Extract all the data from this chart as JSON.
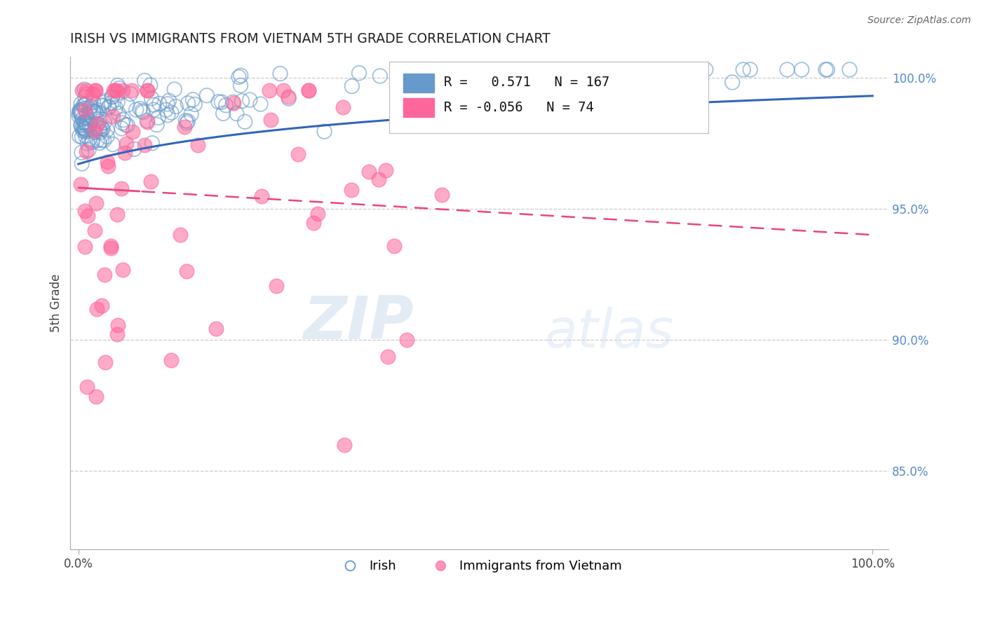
{
  "title": "IRISH VS IMMIGRANTS FROM VIETNAM 5TH GRADE CORRELATION CHART",
  "source": "Source: ZipAtlas.com",
  "ylabel": "5th Grade",
  "ytick_values": [
    0.85,
    0.9,
    0.95,
    1.0
  ],
  "irish_color": "#6699CC",
  "vietnam_color": "#FF6699",
  "irish_R": 0.571,
  "irish_N": 167,
  "vietnam_R": -0.056,
  "vietnam_N": 74,
  "legend_irish": "Irish",
  "legend_vietnam": "Immigrants from Vietnam",
  "watermark_zip": "ZIP",
  "watermark_atlas": "atlas",
  "background_color": "#ffffff",
  "grid_color": "#cccccc",
  "trend_blue": "#3366BB",
  "trend_pink": "#EE4477"
}
